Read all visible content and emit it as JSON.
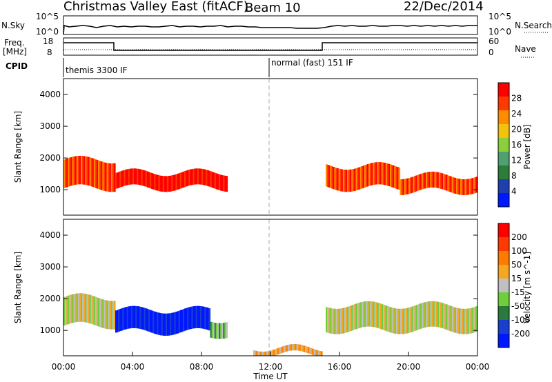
{
  "header": {
    "title": "Christmas Valley East (fitACF)",
    "beam": "Beam 10",
    "date": "22/Dec/2014"
  },
  "nsky_panel": {
    "left_label": "N.Sky",
    "right_label": "N.Search",
    "left_ticks": [
      "10^5",
      "10^0"
    ],
    "right_ticks": [
      "10^5",
      "10^0"
    ]
  },
  "freq_panel": {
    "left_label_1": "Freq.",
    "left_label_2": "[MHz]",
    "right_label": "Nave",
    "left_ticks": [
      "18",
      "8"
    ],
    "right_ticks": [
      "60",
      "0"
    ]
  },
  "cpid": {
    "label": "CPID",
    "segments": [
      "themis 3300 IF",
      "normal (fast) 151 IF"
    ]
  },
  "chart_data": [
    {
      "type": "heatmap",
      "title": "",
      "xlabel": "Time UT",
      "ylabel": "Slant Range [km]",
      "x_ticks": [
        "00:00",
        "04:00",
        "08:00",
        "12:00",
        "16:00",
        "20:00",
        "00:00"
      ],
      "y_ticks": [
        "1000",
        "2000",
        "3000",
        "4000"
      ],
      "ylim": [
        200,
        4500
      ],
      "colorbar_label": "Power [dB]",
      "colorbar_ticks": [
        "28",
        "24",
        "20",
        "16",
        "12",
        "8",
        "4"
      ],
      "colors": [
        "#0018ff",
        "#1e3fb0",
        "#2e7c3a",
        "#4fa070",
        "#8ccf3c",
        "#f2c20e",
        "#ff8c00",
        "#ff3a00",
        "#ff0000"
      ],
      "bands": [
        {
          "t0": 0.0,
          "t1": 3.0,
          "r_center": 1500,
          "r_width": 900,
          "level": 7
        },
        {
          "t0": 3.0,
          "t1": 9.5,
          "r_center": 1300,
          "r_width": 500,
          "level": 8
        },
        {
          "t0": 15.2,
          "t1": 19.5,
          "r_center": 1400,
          "r_width": 700,
          "level": 7
        },
        {
          "t0": 19.5,
          "t1": 24.0,
          "r_center": 1200,
          "r_width": 500,
          "level": 7
        }
      ]
    },
    {
      "type": "heatmap",
      "title": "",
      "xlabel": "Time UT",
      "ylabel": "Slant Range [km]",
      "x_ticks": [
        "00:00",
        "04:00",
        "08:00",
        "12:00",
        "16:00",
        "20:00",
        "00:00"
      ],
      "y_ticks": [
        "1000",
        "2000",
        "3000",
        "4000"
      ],
      "ylim": [
        200,
        4500
      ],
      "colorbar_label": "Velocity [m s^-1]",
      "colorbar_ticks": [
        "200",
        "100",
        "50",
        "15",
        "-15",
        "-50",
        "-100",
        "-200"
      ],
      "colors": [
        "#0018ff",
        "#1a3fd0",
        "#2b7a3c",
        "#6ecf3a",
        "#c0c0c0",
        "#f5a623",
        "#ff7a00",
        "#ff3a00",
        "#ff0000"
      ],
      "bands": [
        {
          "t0": 0.0,
          "t1": 3.0,
          "r_center": 1600,
          "r_width": 900,
          "level": 4
        },
        {
          "t0": 3.0,
          "t1": 8.5,
          "r_center": 1300,
          "r_width": 700,
          "level": 0
        },
        {
          "t0": 8.5,
          "t1": 9.5,
          "r_center": 1100,
          "r_width": 500,
          "level": 3
        },
        {
          "t0": 15.2,
          "t1": 24.0,
          "r_center": 1400,
          "r_width": 800,
          "level": 4
        },
        {
          "t0": 11.0,
          "t1": 15.0,
          "r_center": 350,
          "r_width": 200,
          "level": 5
        }
      ]
    }
  ]
}
